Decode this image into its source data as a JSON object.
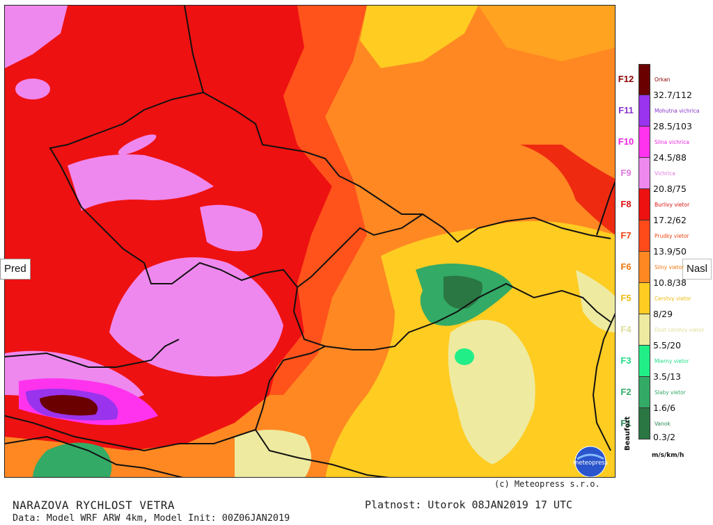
{
  "navigation": {
    "prev_label": "Pred",
    "next_label": "Nasl"
  },
  "legend": {
    "classes": [
      {
        "beaufort": "F12",
        "name": "Orkan",
        "color": "#6b0000",
        "label_color": "#8b0000",
        "name_color": "#8b0000"
      },
      {
        "beaufort": "F11",
        "name": "Mohutna vichrica",
        "color": "#9933ee",
        "label_color": "#8833cc",
        "name_color": "#8833cc"
      },
      {
        "beaufort": "F10",
        "name": "Silna vichrica",
        "color": "#ff33ee",
        "label_color": "#ee22dd",
        "name_color": "#ee22dd"
      },
      {
        "beaufort": "F9",
        "name": "Vichrica",
        "color": "#ee88ee",
        "label_color": "#dd77dd",
        "name_color": "#dd77dd"
      },
      {
        "beaufort": "F8",
        "name": "Burlivy vietor",
        "color": "#ee1111",
        "label_color": "#dd1111",
        "name_color": "#dd1111"
      },
      {
        "beaufort": "F7",
        "name": "Prudky vietor",
        "color": "#ff4a1a",
        "label_color": "#ee4411",
        "name_color": "#ee4411"
      },
      {
        "beaufort": "F6",
        "name": "Silny vietor",
        "color": "#ff8822",
        "label_color": "#ee7711",
        "name_color": "#ee7711"
      },
      {
        "beaufort": "F5",
        "name": "Cerstvy vietor",
        "color": "#ffcc22",
        "label_color": "#eebb11",
        "name_color": "#eebb11"
      },
      {
        "beaufort": "F4",
        "name": "Dost cerstvy vietor",
        "color": "#eeeaa0",
        "label_color": "#dddd99",
        "name_color": "#dddd99"
      },
      {
        "beaufort": "F3",
        "name": "Mierny vietor",
        "color": "#22ee88",
        "label_color": "#22dd88",
        "name_color": "#22dd88"
      },
      {
        "beaufort": "F2",
        "name": "Slaby vietor",
        "color": "#33aa66",
        "label_color": "#33aa66",
        "name_color": "#33aa66"
      },
      {
        "beaufort": "F1",
        "name": "Vanok",
        "color": "#2a7744",
        "label_color": "#2a8855",
        "name_color": "#2a8855"
      }
    ],
    "thresholds": [
      "32.7/112",
      "28.5/103",
      "24.5/88",
      "20.8/75",
      "17.2/62",
      "13.9/50",
      "10.8/38",
      "8/29",
      "5.5/20",
      "3.5/13",
      "1.6/6",
      "0.3/2"
    ],
    "scale_caption": "Beaufort",
    "units": "m/s/km/h"
  },
  "copyright": "(c) Meteopress s.r.o.",
  "logo_text": "meteopress",
  "title": "NARAZOVA RYCHLOST VETRA",
  "validity": "Platnost: Utorok 08JAN2019 17 UTC",
  "model_info": "Data: Model WRF ARW 4km, Model Init: 00Z06JAN2019",
  "colors": {
    "f12": "#6b0000",
    "f11": "#9933ee",
    "f10": "#ff33ee",
    "f9": "#ee88ee",
    "f8": "#ee1111",
    "f7": "#ff4a1a",
    "f6": "#ff8822",
    "f5": "#ffcc22",
    "f4": "#eeeaa0",
    "f3": "#22ee88",
    "f2": "#33aa66",
    "f1": "#2a7744",
    "border": "#111111"
  }
}
